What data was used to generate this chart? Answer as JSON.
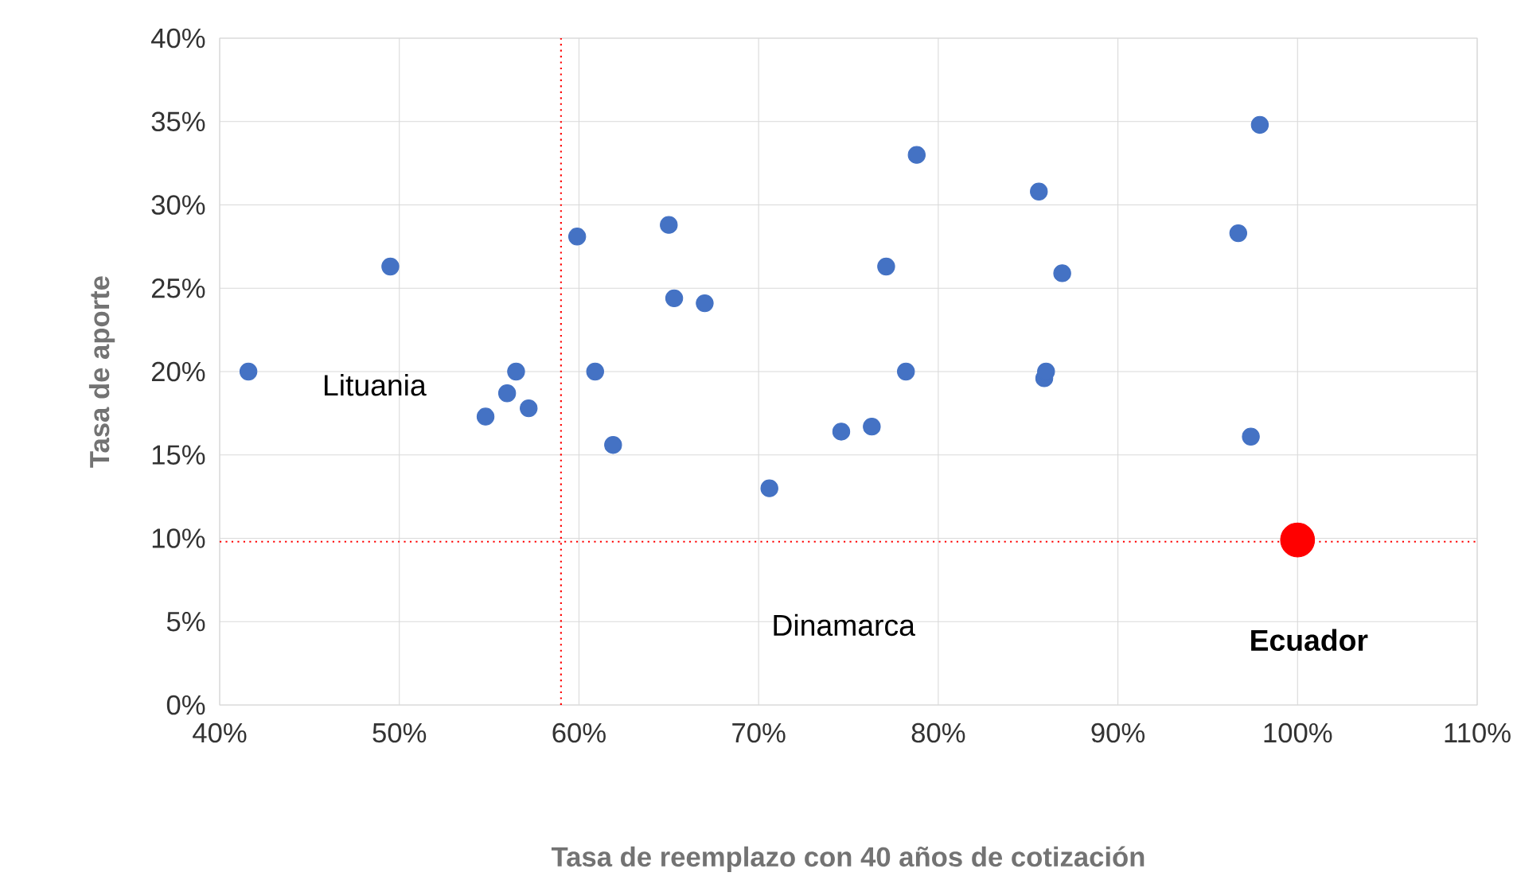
{
  "chart_data": {
    "type": "scatter",
    "xlabel": "Tasa de reemplazo con 40 años de cotización",
    "ylabel": "Tasa de aporte",
    "xlim": [
      40,
      110
    ],
    "xticks": [
      {
        "value": 40,
        "label": "40%"
      },
      {
        "value": 50,
        "label": "50%"
      },
      {
        "value": 60,
        "label": "60%"
      },
      {
        "value": 70,
        "label": "70%"
      },
      {
        "value": 80,
        "label": "80%"
      },
      {
        "value": 90,
        "label": "90%"
      },
      {
        "value": 100,
        "label": "100%"
      },
      {
        "value": 110,
        "label": "110%"
      }
    ],
    "ylim": [
      0,
      40
    ],
    "yticks": [
      {
        "value": 0,
        "label": "0%"
      },
      {
        "value": 5,
        "label": "5%"
      },
      {
        "value": 10,
        "label": "10%"
      },
      {
        "value": 15,
        "label": "15%"
      },
      {
        "value": 20,
        "label": "20%"
      },
      {
        "value": 25,
        "label": "25%"
      },
      {
        "value": 30,
        "label": "30%"
      },
      {
        "value": 35,
        "label": "35%"
      },
      {
        "value": 40,
        "label": "40%"
      }
    ],
    "grid": true,
    "series": [
      {
        "color": "#4472c4",
        "x": [
          41.6,
          49.5,
          54.8,
          56.0,
          56.5,
          57.2,
          59.9,
          60.9,
          61.9,
          65.0,
          65.3,
          67.0,
          70.6,
          74.6,
          76.3,
          77.1,
          78.2,
          78.8,
          85.6,
          85.9,
          86.0,
          86.9,
          96.7,
          97.4,
          97.9
        ],
        "values": [
          20.0,
          26.3,
          17.3,
          18.7,
          20.0,
          17.8,
          28.1,
          20.0,
          15.6,
          28.8,
          24.4,
          24.1,
          13.0,
          16.4,
          16.7,
          26.3,
          20.0,
          33.0,
          30.8,
          19.6,
          20.0,
          25.9,
          28.3,
          16.1,
          34.8
        ]
      },
      {
        "color": "#ff0000",
        "x": [
          100
        ],
        "values": [
          9.9
        ]
      }
    ],
    "ref_lines": [
      {
        "axis": "x",
        "value": 59,
        "color": "#ff0000",
        "line_style": "dotted"
      },
      {
        "axis": "y",
        "value": 9.8,
        "color": "#ff0000",
        "line_style": "dotted"
      }
    ],
    "annotations": [
      "Lituania",
      "Dinamarca",
      "**Ecuador**"
    ]
  }
}
